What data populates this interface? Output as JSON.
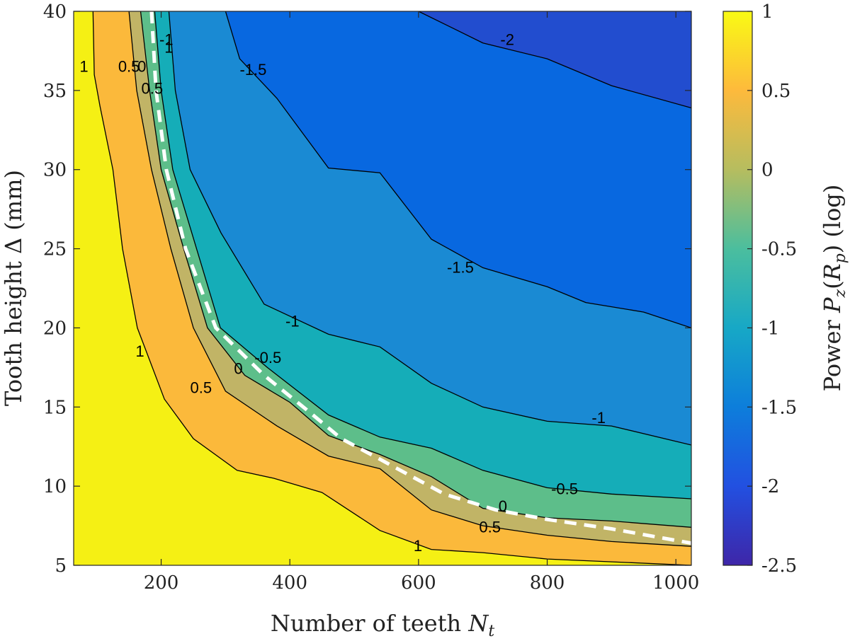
{
  "chart_data": {
    "type": "heatmap",
    "subtype": "filled-contour",
    "title": "",
    "xlabel": "Number of teeth N_t",
    "xlabel_main": "Number of teeth ",
    "xlabel_var": "N",
    "xlabel_sub": "t",
    "ylabel": "Tooth height Δ (mm)",
    "colorbar_label": "Power P_z(R_p) (log)",
    "colorbar_label_pre": "Power ",
    "colorbar_label_var": "P",
    "colorbar_label_sub": "z",
    "colorbar_label_arg_var": "R",
    "colorbar_label_arg_sub": "p",
    "colorbar_label_post": " (log)",
    "xlim": [
      64,
      1024
    ],
    "ylim": [
      5,
      40
    ],
    "clim": [
      -2.5,
      1
    ],
    "x_ticks": [
      200,
      400,
      600,
      800,
      1000
    ],
    "x_tick_labels": [
      "200",
      "400",
      "600",
      "800",
      "1000"
    ],
    "y_ticks": [
      5,
      10,
      15,
      20,
      25,
      30,
      35,
      40
    ],
    "y_tick_labels": [
      "5",
      "10",
      "15",
      "20",
      "25",
      "30",
      "35",
      "40"
    ],
    "colorbar_ticks": [
      1,
      0.5,
      0,
      -0.5,
      -1,
      -1.5,
      -2,
      -2.5
    ],
    "colorbar_tick_labels": [
      "1",
      "0.5",
      "0",
      "-0.5",
      "-1",
      "-1.5",
      "-2",
      "-2.5"
    ],
    "colormap": [
      "#3E26A8",
      "#2250E1",
      "#0D7EDB",
      "#17A8C6",
      "#4BBE9E",
      "#B6BD5F",
      "#FDBA3C",
      "#F9FA14"
    ],
    "fill_colors": {
      "above_1": "#F5F014",
      "0.5_to_1": "#FBB93B",
      "0_to_0.5": "#C1B466",
      "-0.5_to_0": "#5DBE8A",
      "-1_to_-0.5": "#15ADB8",
      "-1.5_to_-1": "#1A8AD3",
      "-2_to_-1.5": "#0868E0",
      "below_-2": "#224DCF"
    },
    "contour_levels": [
      {
        "level": 1,
        "label": "1",
        "points": [
          [
            94,
            40
          ],
          [
            96,
            36
          ],
          [
            105,
            34
          ],
          [
            125,
            30
          ],
          [
            140,
            25
          ],
          [
            163,
            20
          ],
          [
            205,
            15.5
          ],
          [
            250,
            13
          ],
          [
            318,
            11
          ],
          [
            375,
            10.5
          ],
          [
            450,
            9.6
          ],
          [
            540,
            7.2
          ],
          [
            620,
            6
          ],
          [
            700,
            5.8
          ],
          [
            800,
            5.4
          ],
          [
            1024,
            5
          ]
        ]
      },
      {
        "level": 0.5,
        "label": "0.5",
        "points": [
          [
            150,
            40
          ],
          [
            162,
            35
          ],
          [
            185,
            30
          ],
          [
            215,
            25
          ],
          [
            250,
            20
          ],
          [
            300,
            16
          ],
          [
            380,
            13.8
          ],
          [
            460,
            11.9
          ],
          [
            540,
            11.1
          ],
          [
            620,
            8.5
          ],
          [
            700,
            7.5
          ],
          [
            800,
            6.9
          ],
          [
            900,
            6.5
          ],
          [
            1024,
            6.2
          ]
        ]
      },
      {
        "level": 0,
        "label": "0",
        "points": [
          [
            168,
            40
          ],
          [
            182,
            35
          ],
          [
            200,
            30
          ],
          [
            235,
            25
          ],
          [
            272,
            20
          ],
          [
            330,
            17
          ],
          [
            400,
            15.3
          ],
          [
            460,
            13.2
          ],
          [
            540,
            12
          ],
          [
            620,
            10.6
          ],
          [
            700,
            8.6
          ],
          [
            800,
            8
          ],
          [
            900,
            7.8
          ],
          [
            1024,
            7.4
          ]
        ]
      },
      {
        "level": -0.5,
        "label": "-0.5",
        "points": [
          [
            190,
            40
          ],
          [
            200,
            35
          ],
          [
            218,
            30
          ],
          [
            255,
            25
          ],
          [
            292,
            20
          ],
          [
            365,
            17.5
          ],
          [
            460,
            14.5
          ],
          [
            540,
            13.1
          ],
          [
            620,
            12.4
          ],
          [
            700,
            11
          ],
          [
            800,
            9.9
          ],
          [
            900,
            9.5
          ],
          [
            1024,
            9.2
          ]
        ]
      },
      {
        "level": -1,
        "label": "-1",
        "points": [
          [
            212,
            40
          ],
          [
            222,
            35
          ],
          [
            245,
            30
          ],
          [
            293,
            26
          ],
          [
            360,
            21.5
          ],
          [
            460,
            19.6
          ],
          [
            540,
            18.8
          ],
          [
            620,
            16.5
          ],
          [
            700,
            15
          ],
          [
            800,
            14.1
          ],
          [
            900,
            13.8
          ],
          [
            1024,
            12.6
          ]
        ]
      },
      {
        "level": -1.5,
        "label": "-1.5",
        "points": [
          [
            300,
            40
          ],
          [
            322,
            37
          ],
          [
            380,
            34.5
          ],
          [
            460,
            30.1
          ],
          [
            540,
            29.8
          ],
          [
            620,
            25.6
          ],
          [
            700,
            23.8
          ],
          [
            800,
            22.6
          ],
          [
            860,
            21.6
          ],
          [
            950,
            21
          ],
          [
            1024,
            20
          ]
        ]
      },
      {
        "level": -2,
        "label": "-2",
        "points": [
          [
            600,
            40
          ],
          [
            700,
            38
          ],
          [
            800,
            37
          ],
          [
            900,
            35.3
          ],
          [
            1024,
            33.9
          ]
        ]
      }
    ],
    "contour_labels": [
      {
        "text": "1",
        "x": 80,
        "y": 36.5
      },
      {
        "text": "0.5",
        "x": 150,
        "y": 36.5
      },
      {
        "text": "0",
        "x": 170,
        "y": 36.5
      },
      {
        "text": "0.5",
        "x": 186,
        "y": 35.1
      },
      {
        "text": "-1",
        "x": 208,
        "y": 38.2
      },
      {
        "text": "1",
        "x": 212,
        "y": 37.7
      },
      {
        "text": "-1.5",
        "x": 343,
        "y": 36.3
      },
      {
        "text": "-2",
        "x": 738,
        "y": 38.2
      },
      {
        "text": "-1.5",
        "x": 665,
        "y": 23.8
      },
      {
        "text": "-1",
        "x": 404,
        "y": 20.4
      },
      {
        "text": "-0.5",
        "x": 366,
        "y": 18.1
      },
      {
        "text": "0",
        "x": 320,
        "y": 17.4
      },
      {
        "text": "0.5",
        "x": 262,
        "y": 16.2
      },
      {
        "text": "1",
        "x": 167,
        "y": 18.5
      },
      {
        "text": "-1",
        "x": 880,
        "y": 14.3
      },
      {
        "text": "-0.5",
        "x": 827,
        "y": 9.8
      },
      {
        "text": "0",
        "x": 731,
        "y": 8.7
      },
      {
        "text": "0.5",
        "x": 711,
        "y": 7.4
      },
      {
        "text": "1",
        "x": 599,
        "y": 6.2
      }
    ],
    "dashed_line": {
      "color": "#FFFFFF",
      "points": [
        [
          185,
          40
        ],
        [
          192,
          35
        ],
        [
          208,
          30
        ],
        [
          238,
          25
        ],
        [
          285,
          20
        ],
        [
          360,
          17
        ],
        [
          430,
          14.7
        ],
        [
          480,
          13
        ],
        [
          540,
          11.7
        ],
        [
          640,
          9.5
        ],
        [
          720,
          8.5
        ],
        [
          800,
          7.9
        ],
        [
          900,
          7.3
        ],
        [
          1024,
          6.4
        ]
      ]
    }
  }
}
